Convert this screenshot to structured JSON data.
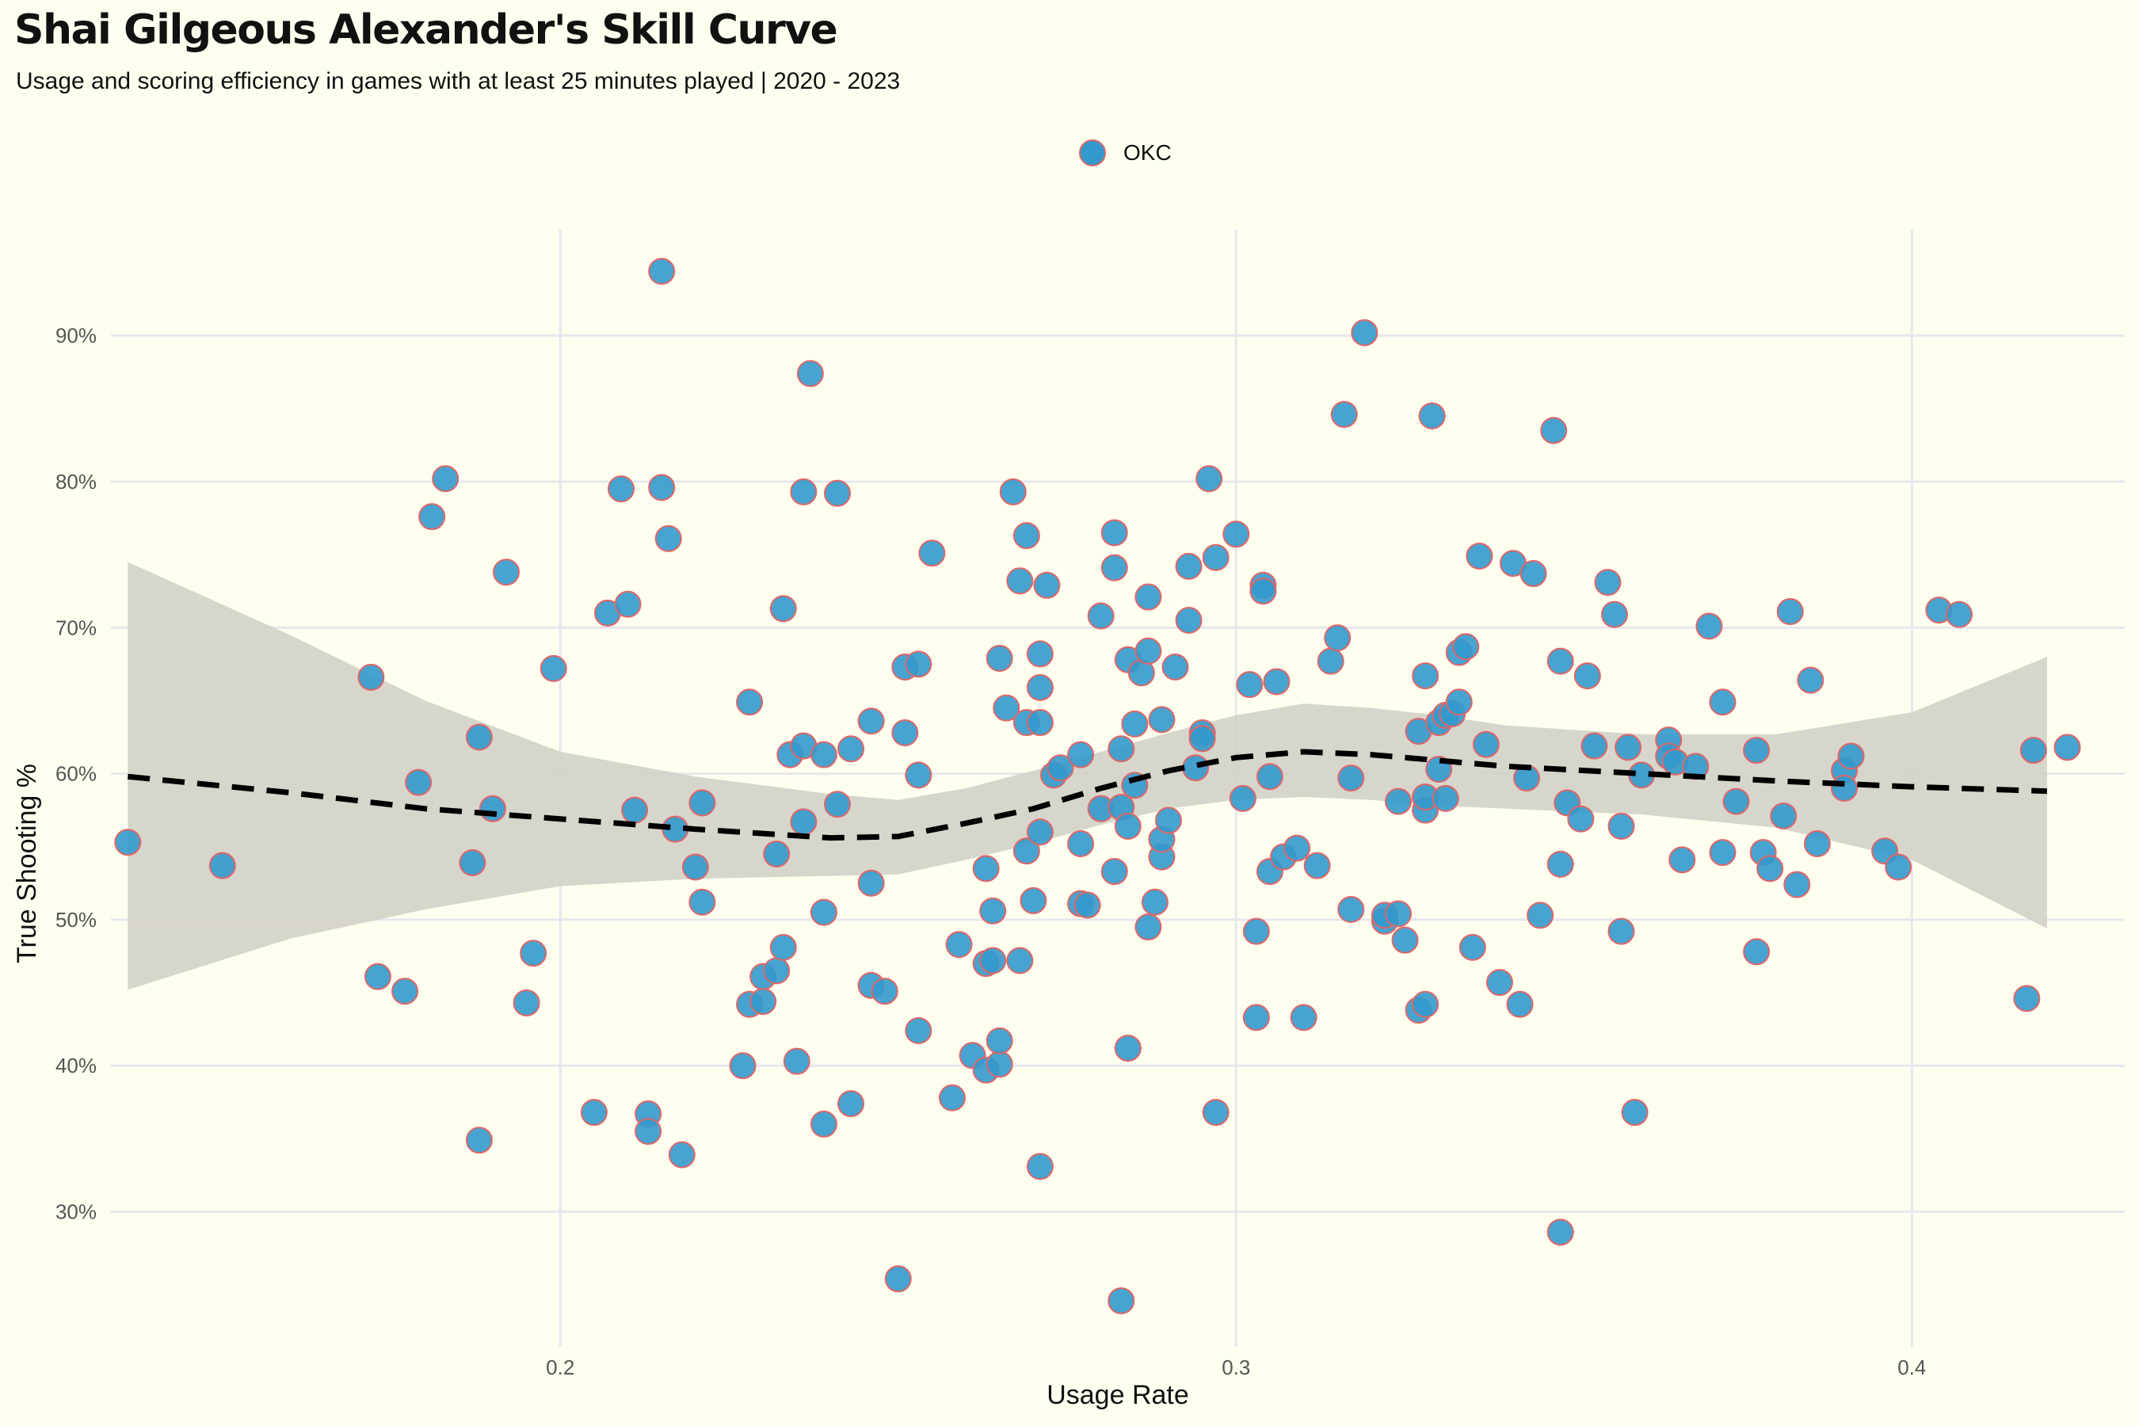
{
  "title": "Shai Gilgeous Alexander's Skill Curve",
  "subtitle": "Usage and scoring efficiency in games with at least 25 minutes played | 2020 - 2023",
  "legend": {
    "label": "OKC"
  },
  "colors": {
    "background": "#fffff0",
    "point_fill": "#3399cc",
    "point_stroke": "#e06666",
    "ribbon": "#d0cfc5",
    "trend": "#000000",
    "grid": "#e6e6ee"
  },
  "chart_data": {
    "type": "scatter",
    "xlabel": "Usage Rate",
    "ylabel": "True Shooting %",
    "xlim": [
      0.1335,
      0.4315
    ],
    "ylim": [
      0.2075,
      0.9725
    ],
    "xticks": [
      {
        "v": 0.2,
        "label": "0.2"
      },
      {
        "v": 0.3,
        "label": "0.3"
      },
      {
        "v": 0.4,
        "label": "0.4"
      }
    ],
    "yticks": [
      {
        "v": 0.3,
        "label": "30%"
      },
      {
        "v": 0.4,
        "label": "40%"
      },
      {
        "v": 0.5,
        "label": "50%"
      },
      {
        "v": 0.6,
        "label": "60%"
      },
      {
        "v": 0.7,
        "label": "70%"
      },
      {
        "v": 0.8,
        "label": "80%"
      },
      {
        "v": 0.9,
        "label": "90%"
      }
    ],
    "series": [
      {
        "name": "OKC",
        "points": [
          [
            0.136,
            0.553
          ],
          [
            0.15,
            0.537
          ],
          [
            0.172,
            0.666
          ],
          [
            0.173,
            0.461
          ],
          [
            0.177,
            0.451
          ],
          [
            0.179,
            0.594
          ],
          [
            0.181,
            0.776
          ],
          [
            0.183,
            0.802
          ],
          [
            0.187,
            0.539
          ],
          [
            0.188,
            0.625
          ],
          [
            0.188,
            0.349
          ],
          [
            0.19,
            0.576
          ],
          [
            0.192,
            0.738
          ],
          [
            0.195,
            0.443
          ],
          [
            0.196,
            0.477
          ],
          [
            0.199,
            0.672
          ],
          [
            0.205,
            0.368
          ],
          [
            0.207,
            0.71
          ],
          [
            0.209,
            0.795
          ],
          [
            0.21,
            0.716
          ],
          [
            0.211,
            0.575
          ],
          [
            0.213,
            0.367
          ],
          [
            0.213,
            0.355
          ],
          [
            0.215,
            0.944
          ],
          [
            0.215,
            0.796
          ],
          [
            0.216,
            0.761
          ],
          [
            0.217,
            0.562
          ],
          [
            0.218,
            0.339
          ],
          [
            0.22,
            0.536
          ],
          [
            0.221,
            0.512
          ],
          [
            0.221,
            0.58
          ],
          [
            0.227,
            0.4
          ],
          [
            0.228,
            0.649
          ],
          [
            0.228,
            0.442
          ],
          [
            0.23,
            0.444
          ],
          [
            0.23,
            0.461
          ],
          [
            0.232,
            0.545
          ],
          [
            0.232,
            0.465
          ],
          [
            0.233,
            0.713
          ],
          [
            0.233,
            0.481
          ],
          [
            0.234,
            0.613
          ],
          [
            0.235,
            0.403
          ],
          [
            0.236,
            0.793
          ],
          [
            0.236,
            0.567
          ],
          [
            0.236,
            0.619
          ],
          [
            0.237,
            0.874
          ],
          [
            0.239,
            0.613
          ],
          [
            0.239,
            0.505
          ],
          [
            0.239,
            0.36
          ],
          [
            0.241,
            0.792
          ],
          [
            0.241,
            0.579
          ],
          [
            0.243,
            0.617
          ],
          [
            0.243,
            0.374
          ],
          [
            0.246,
            0.636
          ],
          [
            0.246,
            0.525
          ],
          [
            0.246,
            0.455
          ],
          [
            0.248,
            0.451
          ],
          [
            0.25,
            0.254
          ],
          [
            0.251,
            0.628
          ],
          [
            0.251,
            0.673
          ],
          [
            0.253,
            0.675
          ],
          [
            0.253,
            0.599
          ],
          [
            0.253,
            0.424
          ],
          [
            0.255,
            0.751
          ],
          [
            0.258,
            0.378
          ],
          [
            0.259,
            0.483
          ],
          [
            0.261,
            0.407
          ],
          [
            0.263,
            0.47
          ],
          [
            0.263,
            0.535
          ],
          [
            0.263,
            0.397
          ],
          [
            0.264,
            0.506
          ],
          [
            0.264,
            0.472
          ],
          [
            0.265,
            0.679
          ],
          [
            0.265,
            0.401
          ],
          [
            0.265,
            0.417
          ],
          [
            0.266,
            0.645
          ],
          [
            0.267,
            0.793
          ],
          [
            0.268,
            0.732
          ],
          [
            0.268,
            0.472
          ],
          [
            0.269,
            0.763
          ],
          [
            0.269,
            0.635
          ],
          [
            0.269,
            0.547
          ],
          [
            0.27,
            0.513
          ],
          [
            0.271,
            0.682
          ],
          [
            0.271,
            0.659
          ],
          [
            0.271,
            0.635
          ],
          [
            0.271,
            0.331
          ],
          [
            0.271,
            0.56
          ],
          [
            0.272,
            0.729
          ],
          [
            0.273,
            0.599
          ],
          [
            0.274,
            0.604
          ],
          [
            0.277,
            0.613
          ],
          [
            0.277,
            0.552
          ],
          [
            0.277,
            0.511
          ],
          [
            0.278,
            0.51
          ],
          [
            0.28,
            0.708
          ],
          [
            0.28,
            0.576
          ],
          [
            0.282,
            0.765
          ],
          [
            0.282,
            0.741
          ],
          [
            0.282,
            0.533
          ],
          [
            0.283,
            0.239
          ],
          [
            0.283,
            0.617
          ],
          [
            0.283,
            0.577
          ],
          [
            0.284,
            0.678
          ],
          [
            0.284,
            0.564
          ],
          [
            0.284,
            0.412
          ],
          [
            0.285,
            0.634
          ],
          [
            0.285,
            0.592
          ],
          [
            0.286,
            0.669
          ],
          [
            0.287,
            0.684
          ],
          [
            0.287,
            0.721
          ],
          [
            0.287,
            0.495
          ],
          [
            0.288,
            0.512
          ],
          [
            0.289,
            0.543
          ],
          [
            0.289,
            0.555
          ],
          [
            0.289,
            0.637
          ],
          [
            0.29,
            0.568
          ],
          [
            0.291,
            0.673
          ],
          [
            0.293,
            0.742
          ],
          [
            0.293,
            0.705
          ],
          [
            0.294,
            0.604
          ],
          [
            0.295,
            0.628
          ],
          [
            0.295,
            0.624
          ],
          [
            0.296,
            0.802
          ],
          [
            0.297,
            0.748
          ],
          [
            0.297,
            0.368
          ],
          [
            0.3,
            0.764
          ],
          [
            0.301,
            0.583
          ],
          [
            0.302,
            0.661
          ],
          [
            0.303,
            0.492
          ],
          [
            0.303,
            0.433
          ],
          [
            0.304,
            0.729
          ],
          [
            0.304,
            0.725
          ],
          [
            0.305,
            0.598
          ],
          [
            0.305,
            0.533
          ],
          [
            0.306,
            0.663
          ],
          [
            0.307,
            0.543
          ],
          [
            0.309,
            0.549
          ],
          [
            0.31,
            0.433
          ],
          [
            0.312,
            0.537
          ],
          [
            0.314,
            0.677
          ],
          [
            0.315,
            0.693
          ],
          [
            0.316,
            0.846
          ],
          [
            0.317,
            0.597
          ],
          [
            0.317,
            0.507
          ],
          [
            0.319,
            0.902
          ],
          [
            0.322,
            0.499
          ],
          [
            0.322,
            0.503
          ],
          [
            0.324,
            0.504
          ],
          [
            0.324,
            0.581
          ],
          [
            0.325,
            0.486
          ],
          [
            0.327,
            0.629
          ],
          [
            0.327,
            0.438
          ],
          [
            0.328,
            0.667
          ],
          [
            0.328,
            0.575
          ],
          [
            0.328,
            0.584
          ],
          [
            0.328,
            0.442
          ],
          [
            0.329,
            0.845
          ],
          [
            0.33,
            0.603
          ],
          [
            0.33,
            0.635
          ],
          [
            0.331,
            0.583
          ],
          [
            0.331,
            0.64
          ],
          [
            0.332,
            0.641
          ],
          [
            0.333,
            0.649
          ],
          [
            0.333,
            0.683
          ],
          [
            0.334,
            0.687
          ],
          [
            0.335,
            0.481
          ],
          [
            0.336,
            0.749
          ],
          [
            0.337,
            0.62
          ],
          [
            0.339,
            0.457
          ],
          [
            0.341,
            0.744
          ],
          [
            0.342,
            0.442
          ],
          [
            0.343,
            0.597
          ],
          [
            0.344,
            0.737
          ],
          [
            0.345,
            0.503
          ],
          [
            0.347,
            0.835
          ],
          [
            0.348,
            0.538
          ],
          [
            0.348,
            0.677
          ],
          [
            0.348,
            0.286
          ],
          [
            0.349,
            0.58
          ],
          [
            0.351,
            0.569
          ],
          [
            0.352,
            0.667
          ],
          [
            0.353,
            0.619
          ],
          [
            0.355,
            0.731
          ],
          [
            0.356,
            0.709
          ],
          [
            0.357,
            0.564
          ],
          [
            0.357,
            0.492
          ],
          [
            0.358,
            0.618
          ],
          [
            0.359,
            0.368
          ],
          [
            0.36,
            0.599
          ],
          [
            0.364,
            0.623
          ],
          [
            0.364,
            0.612
          ],
          [
            0.365,
            0.608
          ],
          [
            0.366,
            0.541
          ],
          [
            0.368,
            0.605
          ],
          [
            0.37,
            0.701
          ],
          [
            0.372,
            0.649
          ],
          [
            0.372,
            0.546
          ],
          [
            0.374,
            0.581
          ],
          [
            0.377,
            0.616
          ],
          [
            0.377,
            0.478
          ],
          [
            0.378,
            0.546
          ],
          [
            0.379,
            0.535
          ],
          [
            0.381,
            0.571
          ],
          [
            0.382,
            0.711
          ],
          [
            0.383,
            0.524
          ],
          [
            0.385,
            0.664
          ],
          [
            0.386,
            0.552
          ],
          [
            0.39,
            0.602
          ],
          [
            0.39,
            0.59
          ],
          [
            0.391,
            0.612
          ],
          [
            0.396,
            0.547
          ],
          [
            0.398,
            0.536
          ],
          [
            0.404,
            0.712
          ],
          [
            0.407,
            0.709
          ],
          [
            0.417,
            0.446
          ],
          [
            0.418,
            0.616
          ],
          [
            0.423,
            0.618
          ]
        ]
      }
    ],
    "smooth": {
      "style": "dashed",
      "x": [
        0.136,
        0.16,
        0.18,
        0.2,
        0.22,
        0.24,
        0.25,
        0.26,
        0.27,
        0.28,
        0.29,
        0.3,
        0.31,
        0.32,
        0.33,
        0.34,
        0.36,
        0.38,
        0.4,
        0.42
      ],
      "y": [
        0.598,
        0.587,
        0.576,
        0.569,
        0.562,
        0.556,
        0.557,
        0.566,
        0.576,
        0.59,
        0.602,
        0.611,
        0.615,
        0.613,
        0.609,
        0.605,
        0.6,
        0.595,
        0.591,
        0.588
      ],
      "upper": [
        0.745,
        0.695,
        0.65,
        0.615,
        0.598,
        0.586,
        0.582,
        0.59,
        0.602,
        0.615,
        0.628,
        0.64,
        0.648,
        0.645,
        0.64,
        0.633,
        0.627,
        0.627,
        0.642,
        0.68
      ],
      "lower": [
        0.452,
        0.487,
        0.507,
        0.523,
        0.528,
        0.53,
        0.531,
        0.541,
        0.552,
        0.565,
        0.576,
        0.582,
        0.584,
        0.582,
        0.578,
        0.576,
        0.572,
        0.563,
        0.541,
        0.494
      ]
    }
  }
}
